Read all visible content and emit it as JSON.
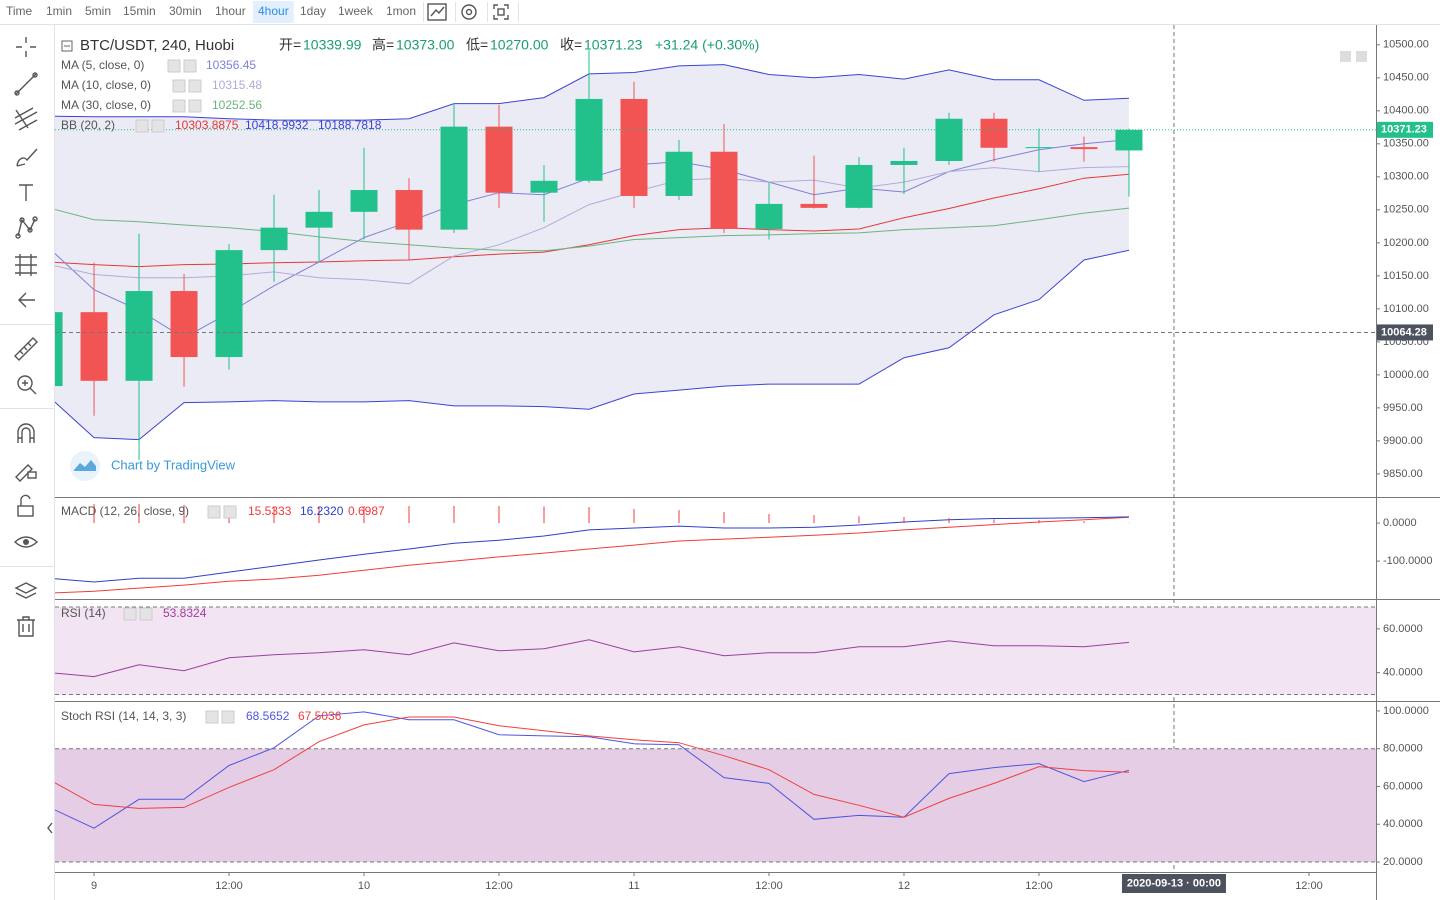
{
  "toolbar": {
    "items": [
      "Time",
      "1min",
      "5min",
      "15min",
      "30min",
      "1hour",
      "4hour",
      "1day",
      "1week",
      "1mon"
    ],
    "active_index": 6
  },
  "chart_data": {
    "type": "candlestick",
    "header": {
      "symbol": "BTC/USDT, 240, Huobi",
      "fields": [
        {
          "label": "开=",
          "value": "10339.99"
        },
        {
          "label": "高=",
          "value": "10373.00"
        },
        {
          "label": "低=",
          "value": "10270.00"
        },
        {
          "label": "收=",
          "value": "10371.23"
        }
      ],
      "change": "+31.24 (+0.30%)"
    },
    "x": [
      -4,
      0,
      4,
      8,
      12,
      16,
      20,
      24,
      28,
      32,
      36,
      40,
      44,
      48,
      52,
      56,
      60,
      64,
      68,
      72,
      76,
      80,
      84,
      88,
      92
    ],
    "xlim": [
      -3.47,
      113.96
    ],
    "xticks": [
      {
        "value": 0,
        "label": "9"
      },
      {
        "value": 12,
        "label": "12:00"
      },
      {
        "value": 24,
        "label": "10"
      },
      {
        "value": 36,
        "label": "12:00"
      },
      {
        "value": 48,
        "label": "11"
      },
      {
        "value": 60,
        "label": "12:00"
      },
      {
        "value": 72,
        "label": "12"
      },
      {
        "value": 84,
        "label": "12:00"
      },
      {
        "value": 108,
        "label": "12:00"
      }
    ],
    "open": [
      9983,
      10095,
      9991,
      10127,
      10027,
      10189,
      10223,
      10247,
      10280,
      10220,
      10376,
      10276,
      10294,
      10418,
      10271,
      10338,
      10221,
      10259,
      10253,
      10318,
      10324,
      10388,
      10344,
      10345,
      10339.99
    ],
    "high": [
      10100,
      10170,
      10214,
      10153,
      10198,
      10273,
      10280,
      10344,
      10298,
      10412,
      10409,
      10318,
      10492,
      10444,
      10356,
      10380,
      10292,
      10332,
      10330,
      10344,
      10397,
      10397,
      10373,
      10361,
      10373
    ],
    "low": [
      9980,
      9938,
      9871,
      9982,
      10008,
      10141,
      10171,
      10205,
      10174,
      10215,
      10253,
      10232,
      10291,
      10253,
      10265,
      10215,
      10205,
      10252,
      10252,
      10274,
      10318,
      10323,
      10308,
      10323,
      10270
    ],
    "close": [
      10095,
      9991,
      10127,
      10027,
      10189,
      10223,
      10247,
      10280,
      10220,
      10376,
      10276,
      10294,
      10418,
      10271,
      10338,
      10221,
      10259,
      10253,
      10318,
      10324,
      10388,
      10344,
      10345,
      10342,
      10371.23
    ],
    "up_color": "#22c08a",
    "down_color": "#f25454",
    "ylim": [
      9815,
      10530
    ],
    "yticks": [
      {
        "value": 9850,
        "label": "9850.00"
      },
      {
        "value": 9900,
        "label": "9900.00"
      },
      {
        "value": 9950,
        "label": "9950.00"
      },
      {
        "value": 10000,
        "label": "10000.00"
      },
      {
        "value": 10050,
        "label": "10050.00"
      },
      {
        "value": 10100,
        "label": "10100.00"
      },
      {
        "value": 10150,
        "label": "10150.00"
      },
      {
        "value": 10200,
        "label": "10200.00"
      },
      {
        "value": 10250,
        "label": "10250.00"
      },
      {
        "value": 10300,
        "label": "10300.00"
      },
      {
        "value": 10350,
        "label": "10350.00"
      },
      {
        "value": 10400,
        "label": "10400.00"
      },
      {
        "value": 10450,
        "label": "10450.00"
      },
      {
        "value": 10500,
        "label": "10500.00"
      }
    ],
    "last_price": 10371.23,
    "crosshair": {
      "x": 96,
      "x_label": "2020-09-13 · 00:00",
      "y": 10064.28
    },
    "series": [
      {
        "name": "MA (5, close, 0)",
        "readout": "10356.45",
        "color": "#7f80d8",
        "values": [
          10192,
          10129,
          10098,
          10056,
          10094,
          10135,
          10171,
          10208,
          10232,
          10258,
          10276,
          10273,
          10298,
          10318,
          10323,
          10311,
          10292,
          10273,
          10283,
          10277,
          10308,
          10326,
          10341,
          10350,
          10356.45
        ]
      },
      {
        "name": "MA (10, close, 0)",
        "readout": "10315.48",
        "color": "#b3aad8",
        "values": [
          10167,
          10152,
          10147,
          10147,
          10150,
          10156,
          10147,
          10144,
          10138,
          10180,
          10197,
          10223,
          10258,
          10277,
          10295,
          10298,
          10292,
          10295,
          10283,
          10292,
          10308,
          10314,
          10308,
          10314,
          10315.48
        ]
      },
      {
        "name": "MA (30, close, 0)",
        "readout": "10252.56",
        "color": "#6cb57e",
        "values": [
          10253,
          10235,
          10232,
          10227,
          10223,
          10217,
          10209,
          10202,
          10197,
          10192,
          10189,
          10188,
          10195,
          10205,
          10208,
          10211,
          10212,
          10214,
          10215,
          10220,
          10223,
          10226,
          10235,
          10245,
          10252.56
        ]
      }
    ],
    "bollinger": {
      "name": "BB (20, 2)",
      "fill": "rgba(110, 110, 190, 0.14)",
      "series": [
        {
          "readout": "10303.8875",
          "color": "#e53935",
          "values": [
            10171,
            10167,
            10164,
            10167,
            10168,
            10170,
            10171,
            10173,
            10174,
            10179,
            10183,
            10186,
            10197,
            10211,
            10220,
            10223,
            10220,
            10218,
            10221,
            10238,
            10252,
            10268,
            10282,
            10298,
            10303.8875
          ]
        },
        {
          "readout": "10418.9932",
          "color": "#3c44d2",
          "values": [
            10392,
            10391,
            10391,
            10391,
            10388,
            10386,
            10386,
            10386,
            10388,
            10411,
            10411,
            10420,
            10456,
            10458,
            10468,
            10470,
            10455,
            10450,
            10455,
            10448,
            10462,
            10447,
            10447,
            10416,
            10418.9932
          ]
        },
        {
          "readout": "10188.7818",
          "color": "#3c44d2",
          "values": [
            9967,
            9905,
            9902,
            9958,
            9959,
            9961,
            9959,
            9959,
            9961,
            9953,
            9953,
            9952,
            9948,
            9971,
            9977,
            9983,
            9986,
            9986,
            9986,
            10026,
            10041,
            10091,
            10114,
            10174,
            10188.7818
          ]
        }
      ]
    },
    "watermark": "Chart by TradingView",
    "indicators": [
      {
        "type": "macd",
        "name": "MACD (12, 26, close, 9)",
        "ylim": [
          -197,
          66
        ],
        "yticks": [
          {
            "value": 0,
            "label": "0.0000"
          },
          {
            "value": -100,
            "label": "-100.0000"
          }
        ],
        "series": [
          {
            "readout": "15.5333",
            "color": "#f03c3c",
            "kind": "line",
            "values": [
              -184,
              -179,
              -171,
              -163,
              -153,
              -147,
              -137,
              -124,
              -111,
              -100,
              -89,
              -79,
              -68,
              -58,
              -47,
              -42,
              -37,
              -32,
              -26,
              -18,
              -11,
              -4,
              3,
              9,
              15.5333
            ]
          },
          {
            "readout": "16.2320",
            "color": "#2f3fc8",
            "kind": "line",
            "values": [
              -145,
              -155,
              -145,
              -145,
              -129,
              -113,
              -97,
              -82,
              -68,
              -53,
              -45,
              -34,
              -18,
              -13,
              -8,
              -13,
              -13,
              -11,
              -5,
              3,
              9,
              12,
              13,
              14,
              16.232
            ]
          },
          {
            "readout": "0.6987",
            "color": "#f03c3c",
            "kind": "histogram",
            "values": [
              48,
              50,
              50,
              48,
              45,
              44,
              44,
              45,
              45,
              45,
              45,
              44,
              42,
              37,
              34,
              29,
              24,
              21,
              18,
              16,
              13,
              10,
              8,
              5,
              0.6987
            ]
          }
        ]
      },
      {
        "type": "rsi",
        "name": "RSI (14)",
        "ylim": [
          27.5,
          73.2
        ],
        "yticks": [
          {
            "value": 60,
            "label": "60.0000"
          },
          {
            "value": 40,
            "label": "40.0000"
          }
        ],
        "bands": [
          30,
          70
        ],
        "band_fill": "#f3e4f3",
        "series": [
          {
            "readout": "53.8324",
            "color": "#9b3f9e",
            "kind": "line",
            "values": [
              40,
              38.2,
              43.6,
              40.9,
              46.8,
              48.2,
              49.1,
              50.5,
              48.2,
              53.6,
              50,
              50.9,
              55,
              49.5,
              51.8,
              47.7,
              49.1,
              49.1,
              51.8,
              51.8,
              54.5,
              52.3,
              52.3,
              51.8,
              53.8324
            ]
          }
        ]
      },
      {
        "type": "stoch_rsi",
        "name": "Stoch RSI (14, 14, 3, 3)",
        "ylim": [
          14.7,
          104.2
        ],
        "yticks": [
          {
            "value": 100,
            "label": "100.0000"
          },
          {
            "value": 80,
            "label": "80.0000"
          },
          {
            "value": 60,
            "label": "60.0000"
          },
          {
            "value": 40,
            "label": "40.0000"
          },
          {
            "value": 20,
            "label": "20.0000"
          }
        ],
        "bands": [
          20,
          80
        ],
        "band_fill": "#e6cde6",
        "series": [
          {
            "readout": "68.5652",
            "color": "#4e55e0",
            "kind": "line",
            "values": [
              49,
              37.9,
              53.2,
              53.2,
              71.1,
              80.5,
              97.4,
              99.5,
              95.3,
              95.3,
              87.4,
              86.8,
              86.3,
              82.6,
              82.1,
              64.7,
              61.6,
              42.6,
              44.7,
              43.7,
              66.8,
              70,
              72.1,
              62.6,
              68.5652
            ]
          },
          {
            "readout": "67.5036",
            "color": "#ee4040",
            "kind": "line",
            "values": [
              63.7,
              50.5,
              48.4,
              48.9,
              59.5,
              68.9,
              83.7,
              92.6,
              96.8,
              96.8,
              92.1,
              89.5,
              86.8,
              84.7,
              83.2,
              76.3,
              68.9,
              55.8,
              50,
              43.7,
              53.7,
              61.6,
              70.5,
              68.4,
              67.5036
            ]
          }
        ]
      }
    ]
  }
}
